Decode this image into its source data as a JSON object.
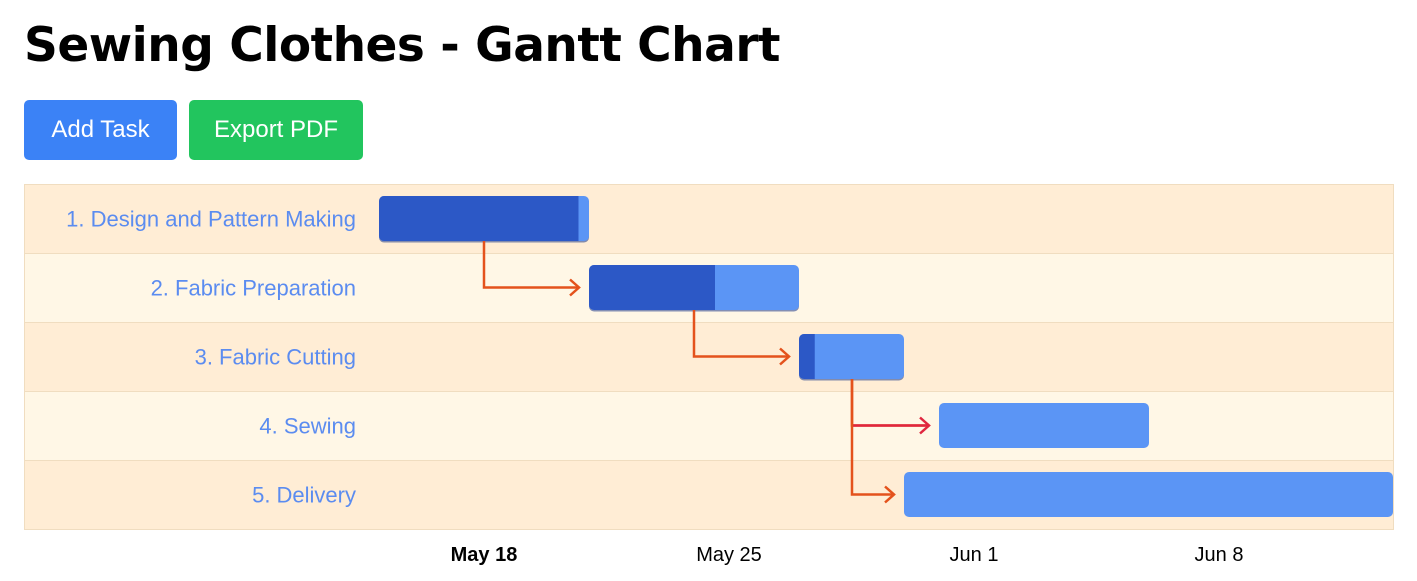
{
  "header": {
    "title": "Sewing Clothes - Gantt Chart"
  },
  "toolbar": {
    "add_task_label": "Add Task",
    "export_pdf_label": "Export PDF"
  },
  "colors": {
    "add_button": "#3b82f6",
    "export_button": "#22c55e",
    "row_odd": "#ffedd5",
    "row_even": "#fff7e6",
    "row_border": "#f0ddc0",
    "task_label": "#5b8cf0",
    "bar_remaining": "#5b95f5",
    "bar_progress": "#2c58c6",
    "dependency_arrow": "#e4521c",
    "dependency_arrow_critical": "#e0263f"
  },
  "chart_data": {
    "type": "gantt",
    "title": "Sewing Clothes - Gantt Chart",
    "tasks": [
      {
        "id": 1,
        "label": "1. Design and Pattern Making",
        "start": "2024-05-16",
        "end": "2024-05-22",
        "progress": 95
      },
      {
        "id": 2,
        "label": "2. Fabric Preparation",
        "start": "2024-05-22",
        "end": "2024-05-28",
        "progress": 60
      },
      {
        "id": 3,
        "label": "3. Fabric Cutting",
        "start": "2024-05-28",
        "end": "2024-05-31",
        "progress": 15
      },
      {
        "id": 4,
        "label": "4. Sewing",
        "start": "2024-06-01",
        "end": "2024-06-07",
        "progress": 0
      },
      {
        "id": 5,
        "label": "5. Delivery",
        "start": "2024-05-31",
        "end": "2024-06-14",
        "progress": 0
      }
    ],
    "dependencies": [
      {
        "from": 1,
        "to": 2,
        "critical": false
      },
      {
        "from": 2,
        "to": 3,
        "critical": false
      },
      {
        "from": 3,
        "to": 4,
        "critical": true
      },
      {
        "from": 3,
        "to": 5,
        "critical": false
      }
    ],
    "xaxis": {
      "range": [
        "2024-05-16",
        "2024-06-14"
      ],
      "ticks": [
        {
          "date": "2024-05-18",
          "label": "May 18",
          "bold": true
        },
        {
          "date": "2024-05-25",
          "label": "May 25",
          "bold": false
        },
        {
          "date": "2024-06-01",
          "label": "Jun 1",
          "bold": false
        },
        {
          "date": "2024-06-08",
          "label": "Jun 8",
          "bold": false
        }
      ]
    }
  }
}
